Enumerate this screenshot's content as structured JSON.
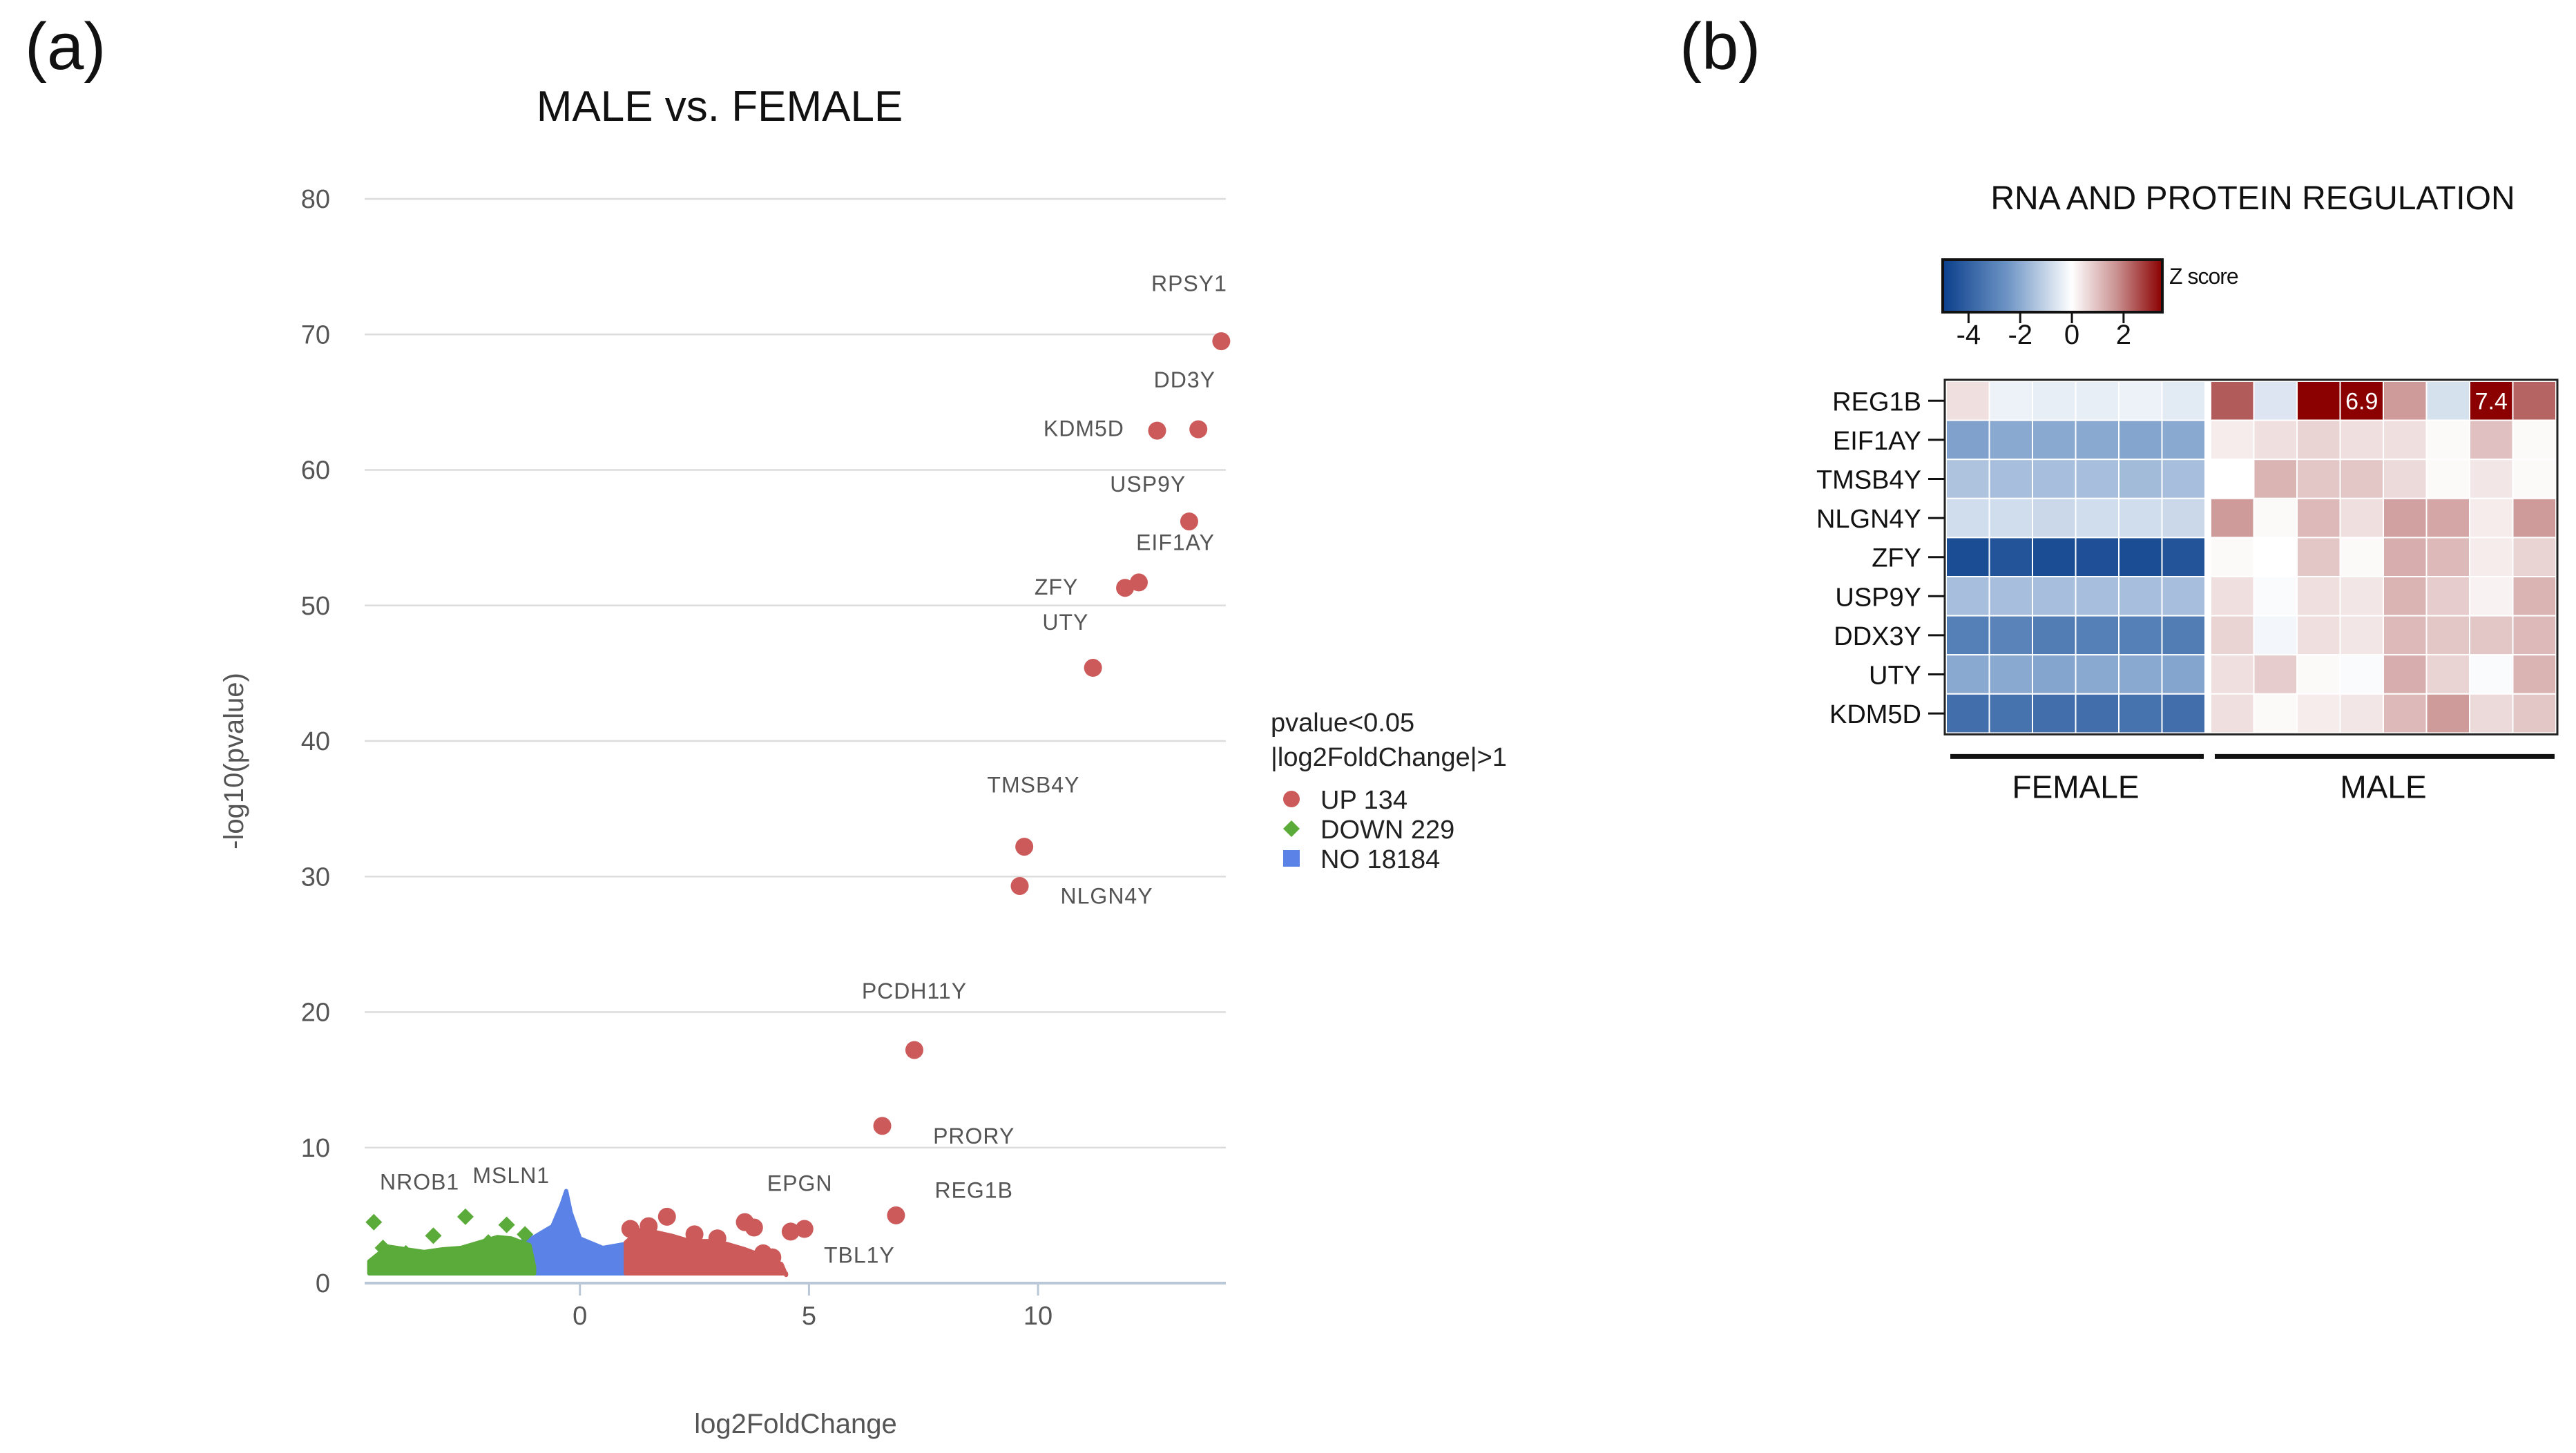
{
  "panels": {
    "a": {
      "letter": "(a)"
    },
    "b": {
      "letter": "(b)"
    }
  },
  "chart_data": [
    {
      "type": "scatter",
      "title": "MALE vs. FEMALE",
      "xlabel": "log2FoldChange",
      "ylabel": "-log10(pvalue)",
      "xlim": [
        -4.7,
        14.1
      ],
      "ylim": [
        0,
        80
      ],
      "xticks": [
        0,
        5,
        10
      ],
      "yticks": [
        0,
        10,
        20,
        30,
        40,
        50,
        60,
        70,
        80
      ],
      "grid": "horizontal",
      "legend": {
        "placement": "right",
        "title_lines": [
          "pvalue<0.05",
          "|log2FoldChange|>1"
        ],
        "entries": [
          {
            "label": "UP 134",
            "color": "#cc5a5a",
            "marker": "circle"
          },
          {
            "label": "DOWN 229",
            "color": "#5aab3a",
            "marker": "diamond"
          },
          {
            "label": "NO 18184",
            "color": "#5b82e6",
            "marker": "square"
          }
        ]
      },
      "colors": {
        "up": "#cc5a5a",
        "down": "#5aab3a",
        "no": "#5b82e6"
      },
      "series": [
        {
          "name": "UP 134",
          "points": [
            {
              "x": 14.0,
              "y": 69.5
            },
            {
              "x": 13.5,
              "y": 63.0
            },
            {
              "x": 12.6,
              "y": 62.9
            },
            {
              "x": 13.3,
              "y": 56.2
            },
            {
              "x": 12.2,
              "y": 51.7
            },
            {
              "x": 11.9,
              "y": 51.3
            },
            {
              "x": 11.2,
              "y": 45.4
            },
            {
              "x": 9.7,
              "y": 32.2
            },
            {
              "x": 9.6,
              "y": 29.3
            },
            {
              "x": 7.3,
              "y": 17.2
            },
            {
              "x": 6.6,
              "y": 11.6
            },
            {
              "x": 6.9,
              "y": 5.0
            },
            {
              "x": 4.9,
              "y": 4.0
            },
            {
              "x": 4.6,
              "y": 3.8
            },
            {
              "x": 3.6,
              "y": 4.5
            },
            {
              "x": 3.8,
              "y": 4.1
            },
            {
              "x": 1.9,
              "y": 4.9
            },
            {
              "x": 1.1,
              "y": 4.0
            },
            {
              "x": 1.5,
              "y": 4.2
            },
            {
              "x": 2.5,
              "y": 3.6
            },
            {
              "x": 3.0,
              "y": 3.3
            },
            {
              "x": 4.0,
              "y": 2.2
            },
            {
              "x": 4.2,
              "y": 1.9
            }
          ]
        },
        {
          "name": "DOWN 229",
          "points": [
            {
              "x": -4.5,
              "y": 4.5
            },
            {
              "x": -3.2,
              "y": 3.5
            },
            {
              "x": -2.5,
              "y": 4.9
            },
            {
              "x": -1.6,
              "y": 4.3
            },
            {
              "x": -4.3,
              "y": 2.6
            },
            {
              "x": -3.8,
              "y": 2.2
            },
            {
              "x": -2.0,
              "y": 3.0
            },
            {
              "x": -1.2,
              "y": 3.6
            }
          ]
        }
      ],
      "labels": [
        {
          "text": "RPSY1",
          "x": 13.3,
          "y": 73.2
        },
        {
          "text": "DD3Y",
          "x": 13.2,
          "y": 66.1
        },
        {
          "text": "KDM5D",
          "x": 11.0,
          "y": 62.5
        },
        {
          "text": "USP9Y",
          "x": 12.4,
          "y": 58.4
        },
        {
          "text": "EIF1AY",
          "x": 13.0,
          "y": 54.1
        },
        {
          "text": "ZFY",
          "x": 10.4,
          "y": 50.8
        },
        {
          "text": "UTY",
          "x": 10.6,
          "y": 48.2
        },
        {
          "text": "TMSB4Y",
          "x": 9.9,
          "y": 36.2
        },
        {
          "text": "NLGN4Y",
          "x": 11.5,
          "y": 28.0
        },
        {
          "text": "PCDH11Y",
          "x": 7.3,
          "y": 21.0
        },
        {
          "text": "PRORY",
          "x": 8.6,
          "y": 10.3
        },
        {
          "text": "REG1B",
          "x": 8.6,
          "y": 6.3
        },
        {
          "text": "EPGN",
          "x": 4.8,
          "y": 6.8
        },
        {
          "text": "TBL1Y",
          "x": 6.1,
          "y": 1.5
        },
        {
          "text": "NROB1",
          "x": -3.5,
          "y": 6.9
        },
        {
          "text": "MSLN1",
          "x": -1.5,
          "y": 7.4
        }
      ],
      "density": {
        "no": [
          [
            -4.3,
            0.9
          ],
          [
            -4.0,
            1.6
          ],
          [
            -3.6,
            1.9
          ],
          [
            -3.0,
            2.1
          ],
          [
            -2.5,
            2.2
          ],
          [
            -2.0,
            2.4
          ],
          [
            -1.5,
            2.8
          ],
          [
            -1.0,
            3.4
          ],
          [
            -0.6,
            4.2
          ],
          [
            -0.4,
            5.8
          ],
          [
            -0.3,
            6.8
          ],
          [
            -0.2,
            5.2
          ],
          [
            0.0,
            3.3
          ],
          [
            0.5,
            2.6
          ],
          [
            1.0,
            2.9
          ],
          [
            1.5,
            3.1
          ],
          [
            2.0,
            2.9
          ],
          [
            2.5,
            2.6
          ],
          [
            3.0,
            2.4
          ],
          [
            3.5,
            2.0
          ],
          [
            4.0,
            1.6
          ],
          [
            4.3,
            0.9
          ]
        ],
        "down": [
          [
            -4.6,
            1.6
          ],
          [
            -4.2,
            2.7
          ],
          [
            -3.8,
            2.5
          ],
          [
            -3.4,
            2.3
          ],
          [
            -3.0,
            2.5
          ],
          [
            -2.6,
            2.6
          ],
          [
            -2.2,
            3.0
          ],
          [
            -1.8,
            3.4
          ],
          [
            -1.5,
            3.3
          ],
          [
            -1.1,
            2.8
          ],
          [
            -1.0,
            1.2
          ]
        ],
        "up": [
          [
            1.0,
            3.0
          ],
          [
            1.3,
            3.9
          ],
          [
            1.6,
            3.8
          ],
          [
            2.0,
            3.5
          ],
          [
            2.4,
            3.1
          ],
          [
            2.8,
            3.1
          ],
          [
            3.2,
            2.9
          ],
          [
            3.6,
            2.5
          ],
          [
            4.0,
            2.0
          ],
          [
            4.4,
            1.4
          ],
          [
            4.5,
            0.6
          ]
        ]
      }
    },
    {
      "type": "heatmap",
      "title": "RNA AND PROTEIN REGULATION",
      "colorbar": {
        "label": "Z score",
        "ticks": [
          -4,
          -2,
          0,
          2
        ],
        "range": [
          -5,
          3.5
        ],
        "stops": [
          "#0b3f8c",
          "#6d94c4",
          "#ffffff",
          "#c99090",
          "#8b0000"
        ]
      },
      "rows": [
        "REG1B",
        "EIF1AY",
        "TMSB4Y",
        "NLGN4Y",
        "ZFY",
        "USP9Y",
        "DDX3Y",
        "UTY",
        "KDM5D"
      ],
      "groups": [
        {
          "label": "FEMALE",
          "count": 6
        },
        {
          "label": "MALE",
          "count": 8
        }
      ],
      "values": [
        [
          0.5,
          -0.3,
          -0.4,
          -0.4,
          -0.3,
          -0.5,
          2.4,
          -0.6,
          7.0,
          6.9,
          1.6,
          -0.7,
          7.4,
          2.3
        ],
        [
          -2.2,
          -2.0,
          -2.0,
          -2.0,
          -2.1,
          -2.0,
          0.3,
          0.5,
          0.7,
          0.5,
          0.5,
          0.1,
          1.0,
          0.1
        ],
        [
          -1.4,
          -1.5,
          -1.5,
          -1.5,
          -1.6,
          -1.5,
          0.0,
          1.2,
          0.9,
          0.9,
          0.6,
          0.1,
          0.4,
          0.1
        ],
        [
          -0.8,
          -0.8,
          -0.9,
          -0.8,
          -0.8,
          -0.9,
          1.6,
          0.1,
          1.1,
          0.5,
          1.5,
          1.4,
          0.3,
          1.6
        ],
        [
          -4.6,
          -4.4,
          -4.6,
          -4.5,
          -4.6,
          -4.4,
          0.1,
          0.0,
          0.9,
          0.1,
          1.3,
          1.1,
          0.3,
          0.7
        ],
        [
          -1.5,
          -1.5,
          -1.5,
          -1.5,
          -1.5,
          -1.5,
          0.5,
          -0.1,
          0.5,
          0.4,
          1.2,
          0.8,
          0.2,
          1.2
        ],
        [
          -3.1,
          -3.0,
          -3.2,
          -3.1,
          -3.1,
          -3.2,
          0.7,
          -0.2,
          0.5,
          0.4,
          1.1,
          0.9,
          0.9,
          1.1
        ],
        [
          -2.0,
          -2.0,
          -2.1,
          -2.0,
          -2.0,
          -2.1,
          0.5,
          0.8,
          0.1,
          -0.1,
          1.3,
          0.7,
          -0.1,
          1.2
        ],
        [
          -3.6,
          -3.5,
          -3.6,
          -3.6,
          -3.5,
          -3.6,
          0.5,
          0.1,
          0.3,
          0.4,
          1.1,
          1.6,
          0.6,
          0.9
        ]
      ],
      "cell_labels": [
        {
          "row": 0,
          "col": 9,
          "text": "6.9"
        },
        {
          "row": 0,
          "col": 12,
          "text": "7.4"
        }
      ]
    }
  ]
}
